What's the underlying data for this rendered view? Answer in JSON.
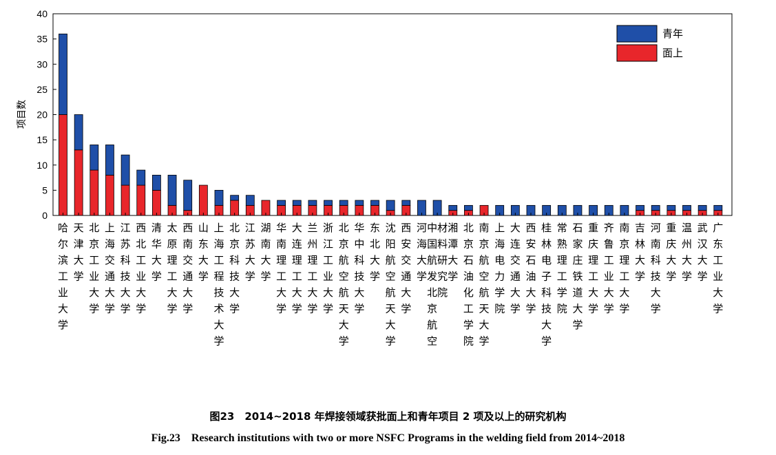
{
  "chart_data": {
    "type": "bar",
    "stacked": true,
    "ylabel": "项目数",
    "ylim": [
      0,
      40
    ],
    "yticks": [
      0,
      5,
      10,
      15,
      20,
      25,
      30,
      35,
      40
    ],
    "legend_position": "top-right",
    "categories": [
      "哈尔滨工业大学",
      "天津大学",
      "北京工业大学",
      "上海交通大学",
      "江苏科技大学",
      "西北工业大学",
      "清华大学",
      "太原理工大学",
      "西南交通大学",
      "山东大学",
      "上海工程技术大学",
      "北京科技大学",
      "江苏大学",
      "湖南大学",
      "华南理工大学",
      "大连理工大学",
      "兰州理工大学",
      "浙江工业大学",
      "北京航空航天大学",
      "华中科技大学",
      "东北大学",
      "沈阳航空航天大学",
      "西安交通大学",
      "河海大学",
      "中国航发北京航空材料研究院",
      "湘潭大学",
      "北京石油化工学院",
      "南京航空航天大学",
      "上海电力学院",
      "大连交通大学",
      "西安石油大学",
      "桂林电子科技大学",
      "常熟理工学院",
      "石家庄铁道大学",
      "重庆理工大学",
      "齐鲁工业大学",
      "南京理工大学",
      "吉林大学",
      "河南科技大学",
      "重庆大学",
      "温州大学",
      "武汉大学",
      "广东工业大学"
    ],
    "series": [
      {
        "name": "面上",
        "color": "#e8262b",
        "values": [
          20,
          13,
          9,
          8,
          6,
          6,
          5,
          2,
          1,
          6,
          2,
          3,
          2,
          3,
          2,
          2,
          2,
          2,
          2,
          2,
          2,
          1,
          2,
          0,
          0,
          1,
          1,
          2,
          0,
          0,
          0,
          0,
          0,
          0,
          0,
          0,
          0,
          1,
          1,
          1,
          1,
          1,
          1
        ]
      },
      {
        "name": "青年",
        "color": "#1f4fa8",
        "values": [
          16,
          7,
          5,
          6,
          6,
          3,
          3,
          6,
          6,
          0,
          3,
          1,
          2,
          0,
          1,
          1,
          1,
          1,
          1,
          1,
          1,
          2,
          1,
          3,
          3,
          1,
          1,
          0,
          2,
          2,
          2,
          2,
          2,
          2,
          2,
          2,
          2,
          1,
          1,
          1,
          1,
          1,
          1
        ]
      }
    ]
  },
  "caption": {
    "cn": "图23　2014~2018 年焊接领域获批面上和青年项目 2 项及以上的研究机构",
    "en": "Fig.23　Research institutions with two or more NSFC Programs in the welding field from 2014~2018"
  }
}
